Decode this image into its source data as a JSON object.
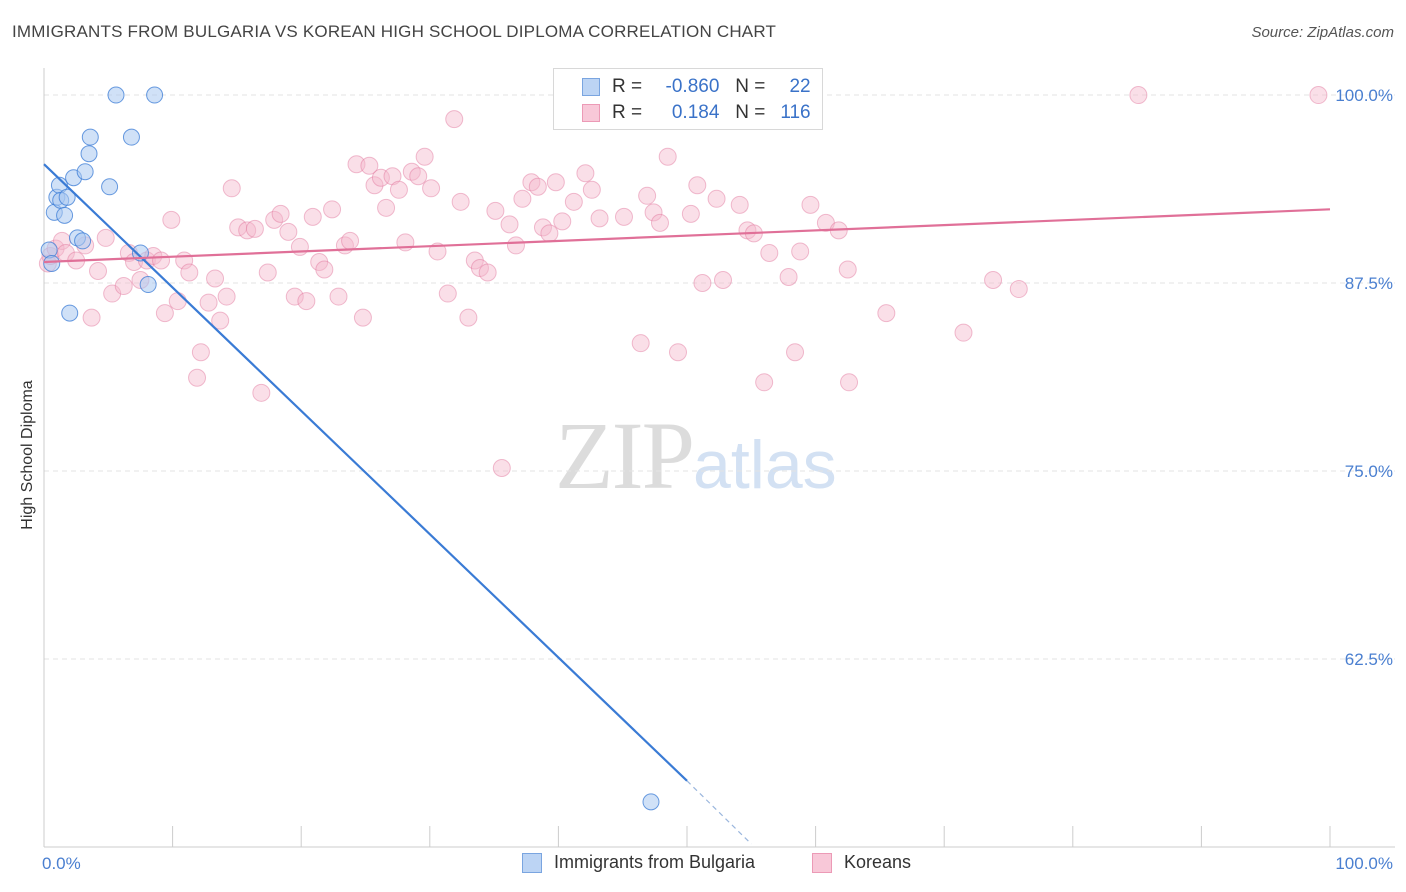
{
  "header": {
    "title": "IMMIGRANTS FROM BULGARIA VS KOREAN HIGH SCHOOL DIPLOMA CORRELATION CHART",
    "source": "Source: ZipAtlas.com"
  },
  "watermark": {
    "part1": "ZIP",
    "part2": "atlas"
  },
  "legend": {
    "rows": [
      {
        "r_label": "R =",
        "r_value": "-0.860",
        "n_label": "N =",
        "n_value": "22"
      },
      {
        "r_label": "R =",
        "r_value": "0.184",
        "n_label": "N =",
        "n_value": "116"
      }
    ]
  },
  "colors": {
    "blue": "#3a7bd5",
    "blue_fill": "#a9c8f0",
    "pink": "#e07098",
    "pink_fill": "#f5b8cc",
    "grid": "#e3e3e3",
    "axis_label": "#4a7fd0"
  },
  "chart_data": {
    "type": "scatter",
    "title": "IMMIGRANTS FROM BULGARIA VS KOREAN HIGH SCHOOL DIPLOMA CORRELATION CHART",
    "xlabel": "",
    "ylabel": "High School Diploma",
    "xlim": [
      0,
      100
    ],
    "ylim": [
      50,
      101
    ],
    "x_tick_labels": [
      "0.0%",
      "100.0%"
    ],
    "y_ticks": [
      62.5,
      75.0,
      87.5,
      100.0
    ],
    "y_tick_labels": [
      "62.5%",
      "75.0%",
      "87.5%",
      "100.0%"
    ],
    "grid": true,
    "legend_placement": "top-center",
    "series": [
      {
        "name": "Immigrants from Bulgaria",
        "color": "#3a7bd5",
        "r": -0.86,
        "n": 22,
        "points": [
          [
            0.4,
            89.7
          ],
          [
            0.6,
            88.8
          ],
          [
            0.8,
            92.2
          ],
          [
            1.0,
            93.2
          ],
          [
            1.2,
            94.0
          ],
          [
            1.3,
            93.0
          ],
          [
            1.6,
            92.0
          ],
          [
            1.8,
            93.2
          ],
          [
            2.0,
            85.5
          ],
          [
            2.3,
            94.5
          ],
          [
            2.6,
            90.5
          ],
          [
            3.0,
            90.3
          ],
          [
            3.2,
            94.9
          ],
          [
            3.5,
            96.1
          ],
          [
            3.6,
            97.2
          ],
          [
            5.1,
            93.9
          ],
          [
            5.6,
            100.0
          ],
          [
            6.8,
            97.2
          ],
          [
            7.5,
            89.5
          ],
          [
            8.1,
            87.4
          ],
          [
            8.6,
            100.0
          ],
          [
            47.2,
            53.0
          ]
        ],
        "trend": {
          "x0": 0,
          "y0": 95.4,
          "x1": 50,
          "y1": 54.4,
          "dash_to_x": 55,
          "dash_to_y": 50.2
        }
      },
      {
        "name": "Koreans",
        "color": "#e07098",
        "r": 0.184,
        "n": 116,
        "points": [
          [
            0.3,
            88.8
          ],
          [
            0.5,
            89.3
          ],
          [
            0.9,
            89.8
          ],
          [
            1.4,
            90.3
          ],
          [
            1.7,
            89.5
          ],
          [
            2.5,
            89.0
          ],
          [
            3.2,
            90.0
          ],
          [
            3.7,
            85.2
          ],
          [
            4.2,
            88.3
          ],
          [
            4.8,
            90.5
          ],
          [
            5.3,
            86.8
          ],
          [
            6.2,
            87.3
          ],
          [
            6.6,
            89.5
          ],
          [
            7.0,
            88.9
          ],
          [
            7.5,
            87.7
          ],
          [
            8.0,
            89.0
          ],
          [
            8.5,
            89.3
          ],
          [
            9.1,
            89.0
          ],
          [
            9.4,
            85.5
          ],
          [
            9.9,
            91.7
          ],
          [
            10.4,
            86.3
          ],
          [
            10.9,
            89.0
          ],
          [
            11.3,
            88.2
          ],
          [
            11.9,
            81.2
          ],
          [
            12.2,
            82.9
          ],
          [
            12.8,
            86.2
          ],
          [
            13.3,
            87.8
          ],
          [
            13.7,
            85.0
          ],
          [
            14.2,
            86.6
          ],
          [
            14.6,
            93.8
          ],
          [
            15.1,
            91.2
          ],
          [
            15.8,
            91.0
          ],
          [
            16.4,
            91.1
          ],
          [
            16.9,
            80.2
          ],
          [
            17.4,
            88.2
          ],
          [
            17.9,
            91.7
          ],
          [
            18.4,
            92.1
          ],
          [
            19.0,
            90.9
          ],
          [
            19.5,
            86.6
          ],
          [
            19.9,
            89.9
          ],
          [
            20.4,
            86.3
          ],
          [
            20.9,
            91.9
          ],
          [
            21.4,
            88.9
          ],
          [
            21.8,
            88.4
          ],
          [
            22.4,
            92.4
          ],
          [
            22.9,
            86.6
          ],
          [
            23.4,
            90.0
          ],
          [
            23.8,
            90.3
          ],
          [
            24.3,
            95.4
          ],
          [
            24.8,
            85.2
          ],
          [
            25.3,
            95.3
          ],
          [
            25.7,
            94.0
          ],
          [
            26.2,
            94.5
          ],
          [
            26.6,
            92.5
          ],
          [
            27.1,
            94.6
          ],
          [
            27.6,
            93.7
          ],
          [
            28.1,
            90.2
          ],
          [
            28.6,
            94.9
          ],
          [
            29.1,
            94.6
          ],
          [
            29.6,
            95.9
          ],
          [
            30.1,
            93.8
          ],
          [
            30.6,
            89.6
          ],
          [
            31.4,
            86.8
          ],
          [
            31.9,
            98.4
          ],
          [
            32.4,
            92.9
          ],
          [
            33.0,
            85.2
          ],
          [
            33.5,
            89.0
          ],
          [
            33.9,
            88.5
          ],
          [
            34.5,
            88.2
          ],
          [
            35.1,
            92.3
          ],
          [
            35.6,
            75.2
          ],
          [
            36.2,
            91.4
          ],
          [
            36.7,
            90.0
          ],
          [
            37.2,
            93.1
          ],
          [
            37.9,
            94.2
          ],
          [
            38.4,
            93.9
          ],
          [
            38.8,
            91.2
          ],
          [
            39.3,
            90.8
          ],
          [
            39.8,
            94.2
          ],
          [
            40.3,
            91.6
          ],
          [
            41.2,
            92.9
          ],
          [
            42.1,
            94.8
          ],
          [
            42.6,
            93.7
          ],
          [
            43.2,
            91.8
          ],
          [
            45.1,
            91.9
          ],
          [
            46.4,
            83.5
          ],
          [
            46.9,
            93.3
          ],
          [
            47.4,
            92.2
          ],
          [
            47.9,
            91.5
          ],
          [
            48.5,
            95.9
          ],
          [
            49.3,
            82.9
          ],
          [
            50.3,
            92.1
          ],
          [
            50.8,
            94.0
          ],
          [
            51.2,
            87.5
          ],
          [
            52.3,
            93.1
          ],
          [
            52.8,
            87.7
          ],
          [
            54.1,
            92.7
          ],
          [
            54.7,
            91.0
          ],
          [
            55.2,
            90.8
          ],
          [
            56.0,
            80.9
          ],
          [
            56.4,
            89.5
          ],
          [
            57.9,
            87.9
          ],
          [
            58.4,
            82.9
          ],
          [
            58.8,
            89.6
          ],
          [
            59.6,
            92.7
          ],
          [
            60.8,
            91.5
          ],
          [
            61.8,
            91.0
          ],
          [
            62.5,
            88.4
          ],
          [
            62.6,
            80.9
          ],
          [
            65.5,
            85.5
          ],
          [
            71.5,
            84.2
          ],
          [
            73.8,
            87.7
          ],
          [
            75.8,
            87.1
          ],
          [
            85.1,
            100.0
          ],
          [
            99.1,
            100.0
          ]
        ],
        "trend": {
          "x0": 0,
          "y0": 88.9,
          "x1": 100,
          "y1": 92.4
        }
      }
    ]
  }
}
